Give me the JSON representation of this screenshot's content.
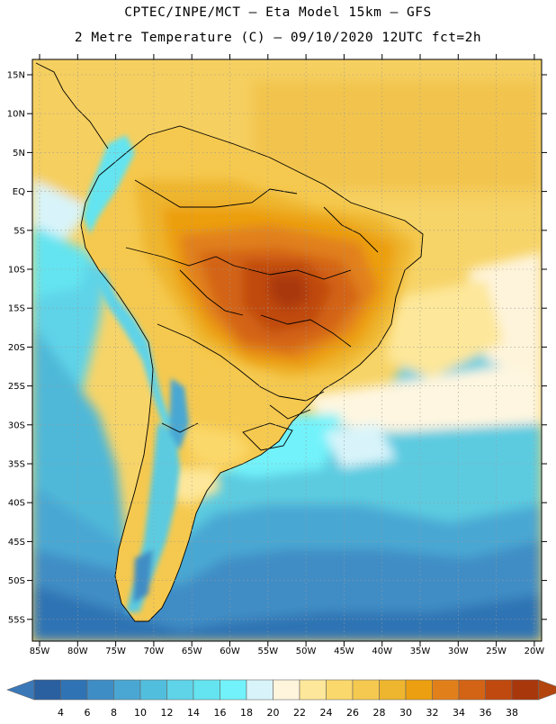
{
  "header": {
    "line1": "CPTEC/INPE/MCT –  Eta Model 15km – GFS",
    "line2": "2 Metre Temperature (C) – 09/10/2020 12UTC fct=2h"
  },
  "axes": {
    "lat_labels": [
      "15N",
      "10N",
      "5N",
      "EQ",
      "5S",
      "10S",
      "15S",
      "20S",
      "25S",
      "30S",
      "35S",
      "40S",
      "45S",
      "50S",
      "55S"
    ],
    "lon_labels": [
      "85W",
      "80W",
      "75W",
      "70W",
      "65W",
      "60W",
      "55W",
      "50W",
      "45W",
      "40W",
      "35W",
      "30W",
      "25W",
      "20W"
    ]
  },
  "colorbar": {
    "labels": [
      "4",
      "6",
      "8",
      "10",
      "12",
      "14",
      "16",
      "18",
      "20",
      "22",
      "24",
      "26",
      "28",
      "30",
      "32",
      "34",
      "36",
      "38"
    ],
    "colors": [
      "#2a5fa0",
      "#2f73b4",
      "#3f8dc5",
      "#4aa7d3",
      "#52bede",
      "#5fd3e8",
      "#64e4f0",
      "#72f2fa",
      "#d8f4fa",
      "#fff4dc",
      "#fde79a",
      "#fbd86b",
      "#f5c94f",
      "#eeb52e",
      "#ec9f10",
      "#e1801a",
      "#d36315",
      "#c0490f",
      "#a9370c"
    ],
    "low_color": "#3a78b8",
    "high_color": "#b3460f"
  }
}
